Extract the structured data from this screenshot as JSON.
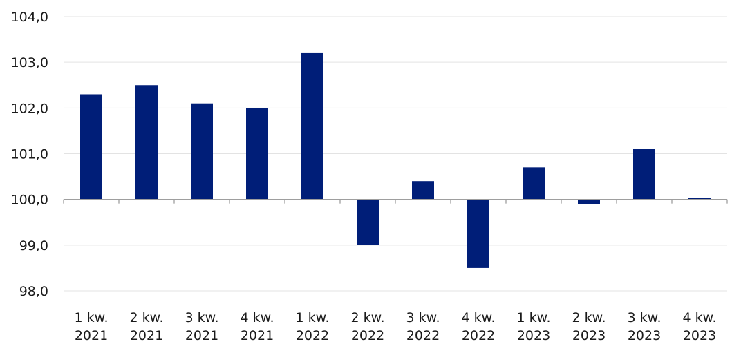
{
  "chart_data": {
    "type": "bar",
    "title": "",
    "xlabel": "",
    "ylabel": "",
    "baseline": 100.0,
    "ylim": [
      98.0,
      104.0
    ],
    "yticks": [
      98.0,
      99.0,
      100.0,
      101.0,
      102.0,
      103.0,
      104.0
    ],
    "ytick_labels": [
      "98,0",
      "99,0",
      "100,0",
      "101,0",
      "102,0",
      "103,0",
      "104,0"
    ],
    "grid": true,
    "legend": "none",
    "bar_color": "#001e78",
    "categories": [
      [
        "1 kw.",
        "2021"
      ],
      [
        "2 kw.",
        "2021"
      ],
      [
        "3 kw.",
        "2021"
      ],
      [
        "4 kw.",
        "2021"
      ],
      [
        "1 kw.",
        "2022"
      ],
      [
        "2 kw.",
        "2022"
      ],
      [
        "3 kw.",
        "2022"
      ],
      [
        "4 kw.",
        "2022"
      ],
      [
        "1 kw.",
        "2023"
      ],
      [
        "2 kw.",
        "2023"
      ],
      [
        "3 kw.",
        "2023"
      ],
      [
        "4 kw.",
        "2023"
      ]
    ],
    "values": [
      102.3,
      102.5,
      102.1,
      102.0,
      103.2,
      99.0,
      100.4,
      98.5,
      100.7,
      99.9,
      101.1,
      100.03
    ]
  }
}
